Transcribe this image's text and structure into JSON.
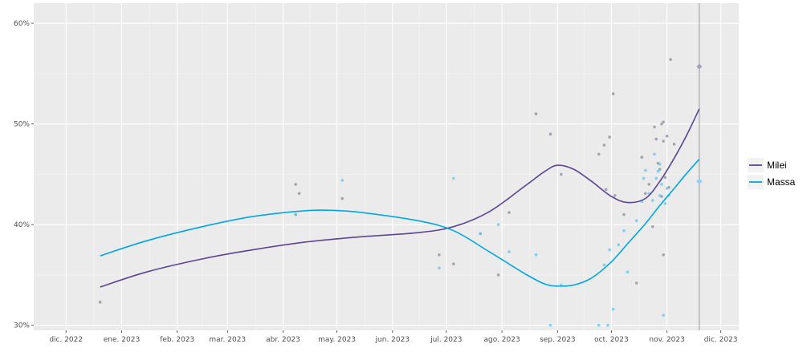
{
  "chart_data": {
    "type": "line",
    "title": "",
    "xlabel": "",
    "ylabel": "",
    "x_ticks": [
      {
        "date": "2022-12-01",
        "label": "dic. 2022"
      },
      {
        "date": "2023-01-01",
        "label": "ene. 2023"
      },
      {
        "date": "2023-02-01",
        "label": "feb. 2023"
      },
      {
        "date": "2023-03-01",
        "label": "mar. 2023"
      },
      {
        "date": "2023-04-01",
        "label": "abr. 2023"
      },
      {
        "date": "2023-05-01",
        "label": "may. 2023"
      },
      {
        "date": "2023-06-01",
        "label": "jun. 2023"
      },
      {
        "date": "2023-07-01",
        "label": "jul. 2023"
      },
      {
        "date": "2023-08-01",
        "label": "ago. 2023"
      },
      {
        "date": "2023-09-01",
        "label": "sep. 2023"
      },
      {
        "date": "2023-10-01",
        "label": "oct. 2023"
      },
      {
        "date": "2023-11-01",
        "label": "nov. 2023"
      },
      {
        "date": "2023-12-01",
        "label": "dic. 2023"
      }
    ],
    "y_ticks": [
      {
        "value": 30,
        "label": "30%"
      },
      {
        "value": 40,
        "label": "40%"
      },
      {
        "value": 50,
        "label": "50%"
      },
      {
        "value": 60,
        "label": "60%"
      }
    ],
    "xlim": [
      "2022-11-13",
      "2023-12-11"
    ],
    "ylim": [
      29.5,
      62
    ],
    "vline_date": "2023-11-19",
    "grid": true,
    "legend_position": "right",
    "series": [
      {
        "name": "Milei",
        "color": "#5b4593",
        "trend": [
          [
            "2022-12-20",
            33.8
          ],
          [
            "2023-01-15",
            35.3
          ],
          [
            "2023-02-15",
            36.6
          ],
          [
            "2023-03-15",
            37.5
          ],
          [
            "2023-04-15",
            38.3
          ],
          [
            "2023-05-15",
            38.8
          ],
          [
            "2023-06-15",
            39.2
          ],
          [
            "2023-07-05",
            39.8
          ],
          [
            "2023-07-25",
            41.3
          ],
          [
            "2023-08-15",
            44.0
          ],
          [
            "2023-08-25",
            45.3
          ],
          [
            "2023-09-01",
            45.9
          ],
          [
            "2023-09-10",
            45.5
          ],
          [
            "2023-09-20",
            44.3
          ],
          [
            "2023-10-01",
            42.8
          ],
          [
            "2023-10-10",
            42.2
          ],
          [
            "2023-10-20",
            42.6
          ],
          [
            "2023-10-28",
            44.3
          ],
          [
            "2023-11-05",
            46.6
          ],
          [
            "2023-11-12",
            48.9
          ],
          [
            "2023-11-19",
            51.5
          ]
        ],
        "points": [
          [
            "2022-12-20",
            32.3
          ],
          [
            "2023-04-08",
            44.0
          ],
          [
            "2023-04-10",
            43.1
          ],
          [
            "2023-04-08",
            41.0
          ],
          [
            "2023-05-04",
            42.6
          ],
          [
            "2023-06-27",
            37.0
          ],
          [
            "2023-07-05",
            36.1
          ],
          [
            "2023-07-20",
            39.1
          ],
          [
            "2023-07-30",
            35.0
          ],
          [
            "2023-08-05",
            41.2
          ],
          [
            "2023-08-20",
            51.0
          ],
          [
            "2023-08-28",
            49.0
          ],
          [
            "2023-09-03",
            45.0
          ],
          [
            "2023-09-24",
            47.0
          ],
          [
            "2023-09-27",
            47.9
          ],
          [
            "2023-09-30",
            48.7
          ],
          [
            "2023-10-02",
            53.0
          ],
          [
            "2023-10-03",
            42.9
          ],
          [
            "2023-09-28",
            43.5
          ],
          [
            "2023-10-08",
            41.0
          ],
          [
            "2023-10-15",
            34.2
          ],
          [
            "2023-10-18",
            46.7
          ],
          [
            "2023-10-20",
            43.1
          ],
          [
            "2023-10-22",
            44.0
          ],
          [
            "2023-10-25",
            49.7
          ],
          [
            "2023-10-26",
            48.5
          ],
          [
            "2023-10-27",
            46.1
          ],
          [
            "2023-10-28",
            45.5
          ],
          [
            "2023-10-29",
            50.0
          ],
          [
            "2023-10-30",
            50.2
          ],
          [
            "2023-10-30",
            48.3
          ],
          [
            "2023-10-31",
            44.7
          ],
          [
            "2023-11-01",
            48.8
          ],
          [
            "2023-11-02",
            43.7
          ],
          [
            "2023-11-03",
            56.4
          ],
          [
            "2023-11-05",
            48.0
          ],
          [
            "2023-10-30",
            37.0
          ],
          [
            "2023-10-24",
            39.8
          ],
          [
            "2023-10-29",
            42.8
          ]
        ],
        "result": [
          "2023-11-19",
          55.7
        ]
      },
      {
        "name": "Massa",
        "color": "#00a7e1",
        "trend": [
          [
            "2022-12-20",
            36.9
          ],
          [
            "2023-01-15",
            38.4
          ],
          [
            "2023-02-15",
            39.8
          ],
          [
            "2023-03-15",
            40.8
          ],
          [
            "2023-04-15",
            41.4
          ],
          [
            "2023-05-01",
            41.4
          ],
          [
            "2023-05-15",
            41.2
          ],
          [
            "2023-06-15",
            40.4
          ],
          [
            "2023-07-05",
            39.4
          ],
          [
            "2023-07-25",
            37.3
          ],
          [
            "2023-08-15",
            35.0
          ],
          [
            "2023-08-25",
            34.1
          ],
          [
            "2023-09-01",
            33.9
          ],
          [
            "2023-09-10",
            34.0
          ],
          [
            "2023-09-20",
            34.7
          ],
          [
            "2023-10-01",
            36.3
          ],
          [
            "2023-10-10",
            38.1
          ],
          [
            "2023-10-20",
            40.1
          ],
          [
            "2023-10-28",
            41.9
          ],
          [
            "2023-11-05",
            43.6
          ],
          [
            "2023-11-12",
            45.1
          ],
          [
            "2023-11-19",
            46.5
          ]
        ],
        "points": [
          [
            "2023-04-08",
            41.0
          ],
          [
            "2023-05-04",
            44.4
          ],
          [
            "2023-06-27",
            35.7
          ],
          [
            "2023-07-05",
            44.6
          ],
          [
            "2023-07-20",
            39.1
          ],
          [
            "2023-07-30",
            40.0
          ],
          [
            "2023-08-05",
            37.3
          ],
          [
            "2023-08-20",
            37.0
          ],
          [
            "2023-08-28",
            30.0
          ],
          [
            "2023-09-03",
            34.0
          ],
          [
            "2023-09-24",
            30.0
          ],
          [
            "2023-09-27",
            36.0
          ],
          [
            "2023-09-30",
            37.5
          ],
          [
            "2023-10-02",
            31.6
          ],
          [
            "2023-10-05",
            38.0
          ],
          [
            "2023-10-08",
            39.4
          ],
          [
            "2023-10-10",
            35.3
          ],
          [
            "2023-10-15",
            40.4
          ],
          [
            "2023-10-18",
            42.3
          ],
          [
            "2023-10-20",
            45.4
          ],
          [
            "2023-10-22",
            43.1
          ],
          [
            "2023-10-24",
            42.4
          ],
          [
            "2023-10-25",
            47.0
          ],
          [
            "2023-10-26",
            44.6
          ],
          [
            "2023-10-27",
            45.3
          ],
          [
            "2023-10-28",
            42.9
          ],
          [
            "2023-10-29",
            44.0
          ],
          [
            "2023-10-30",
            31.0
          ],
          [
            "2023-10-31",
            42.1
          ],
          [
            "2023-11-01",
            43.6
          ],
          [
            "2023-11-02",
            42.9
          ],
          [
            "2023-10-28",
            46.0
          ],
          [
            "2023-09-29",
            30.0
          ],
          [
            "2023-10-19",
            44.6
          ]
        ],
        "result": [
          "2023-11-19",
          44.3
        ]
      }
    ]
  }
}
